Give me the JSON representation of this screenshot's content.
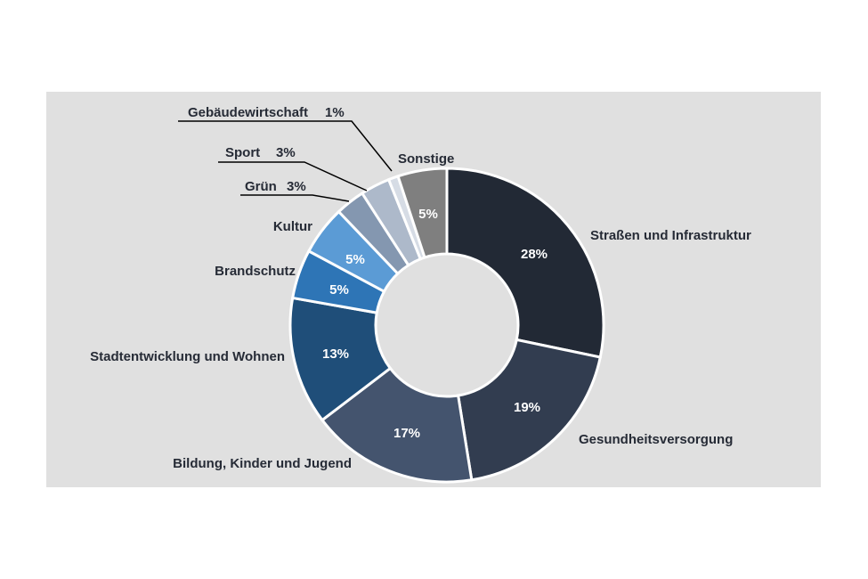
{
  "chart_data": {
    "type": "pie",
    "donut": true,
    "title": "",
    "unit": "%",
    "slices": [
      {
        "label": "Straßen und Infrastruktur",
        "value": 28,
        "value_label": "28%",
        "color": "#222935"
      },
      {
        "label": "Gesundheitsversorgung",
        "value": 19,
        "value_label": "19%",
        "color": "#323d50"
      },
      {
        "label": "Bildung, Kinder und Jugend",
        "value": 17,
        "value_label": "17%",
        "color": "#44546e"
      },
      {
        "label": "Stadtentwicklung und Wohnen",
        "value": 13,
        "value_label": "13%",
        "color": "#1f4e79"
      },
      {
        "label": "Brandschutz",
        "value": 5,
        "value_label": "5%",
        "color": "#2e75b6"
      },
      {
        "label": "Kultur",
        "value": 5,
        "value_label": "5%",
        "color": "#5b9bd5"
      },
      {
        "label": "Grün",
        "value": 3,
        "value_label": "3%",
        "color": "#8497b0"
      },
      {
        "label": "Sport",
        "value": 3,
        "value_label": "3%",
        "color": "#adb9ca"
      },
      {
        "label": "Gebäudewirtschaft",
        "value": 1,
        "value_label": "1%",
        "color": "#d6dce5"
      },
      {
        "label": "Sonstige",
        "value": 5,
        "value_label": "5%",
        "color": "#7f7f7f"
      }
    ]
  }
}
